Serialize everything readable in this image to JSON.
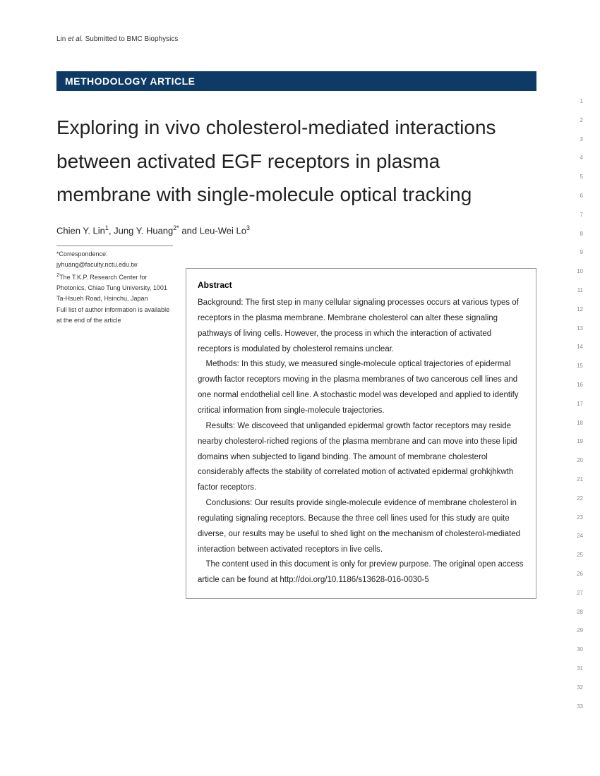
{
  "running_head": {
    "authors": "Lin",
    "etal": "et al.",
    "note": "Submitted to BMC Biophysics"
  },
  "article_type": "METHODOLOGY ARTICLE",
  "title": "Exploring in vivo cholesterol-mediated interactions between activated EGF receptors in plasma membrane with single-molecule optical tracking",
  "authors_line": {
    "a1_name": "Chien Y. Lin",
    "a1_aff": "1",
    "a2_name": "Jung Y. Huang",
    "a2_aff": "2*",
    "a3_name": "Leu-Wei Lo",
    "a3_aff": "3"
  },
  "correspondence": {
    "star": "*",
    "label": "Correspondence:",
    "email": "jyhuang@faculty.nctu.edu.tw",
    "aff_marker": "2",
    "aff_text": "The T.K.P. Research Center for Photonics, Chiao Tung University, 1001 Ta-Hsueh Road,  Hsinchu, Japan",
    "note": "Full list of author information is available at the end of the article"
  },
  "abstract": {
    "heading": "Abstract",
    "p1": "Background: The first step in many cellular signaling processes occurs at various types of receptors in the plasma membrane. Membrane cholesterol can alter these signaling pathways of living cells. However, the process in which the interaction of activated receptors is modulated by cholesterol remains unclear.",
    "p2": "Methods: In this study, we measured single-molecule optical trajectories of epidermal growth factor receptors moving in the plasma membranes of two cancerous cell lines and one normal endothelial cell line. A stochastic model was developed and applied to identify critical information from single-molecule trajectories.",
    "p3": "Results: We discoveed that unliganded epidermal growth factor receptors may reside nearby cholesterol-riched regions of the plasma membrane and can move into these lipid domains when subjected to ligand binding. The amount of membrane cholesterol considerably affects the stability of correlated motion of activated epidermal grohkjhkwth factor receptors.",
    "p4": "Conclusions: Our results provide single-molecule evidence of membrane cholesterol in regulating signaling receptors. Because the three cell lines used for this study are quite diverse, our results may be useful to shed light on the mechanism of cholesterol-mediated interaction between activated receptors in live cells.",
    "p5": "The content used in this document is only for preview purpose. The original open access article can be found at http://doi.org/10.1186/s13628-016-0030-5"
  },
  "line_numbers": [
    "1",
    "2",
    "3",
    "4",
    "5",
    "6",
    "7",
    "8",
    "9",
    "10",
    "11",
    "12",
    "13",
    "14",
    "15",
    "16",
    "17",
    "18",
    "19",
    "20",
    "21",
    "22",
    "23",
    "24",
    "25",
    "26",
    "27",
    "28",
    "29",
    "30",
    "31",
    "32",
    "33"
  ],
  "colors": {
    "bar_bg": "#0d3b66",
    "bar_text": "#ffffff",
    "text": "#222222"
  }
}
